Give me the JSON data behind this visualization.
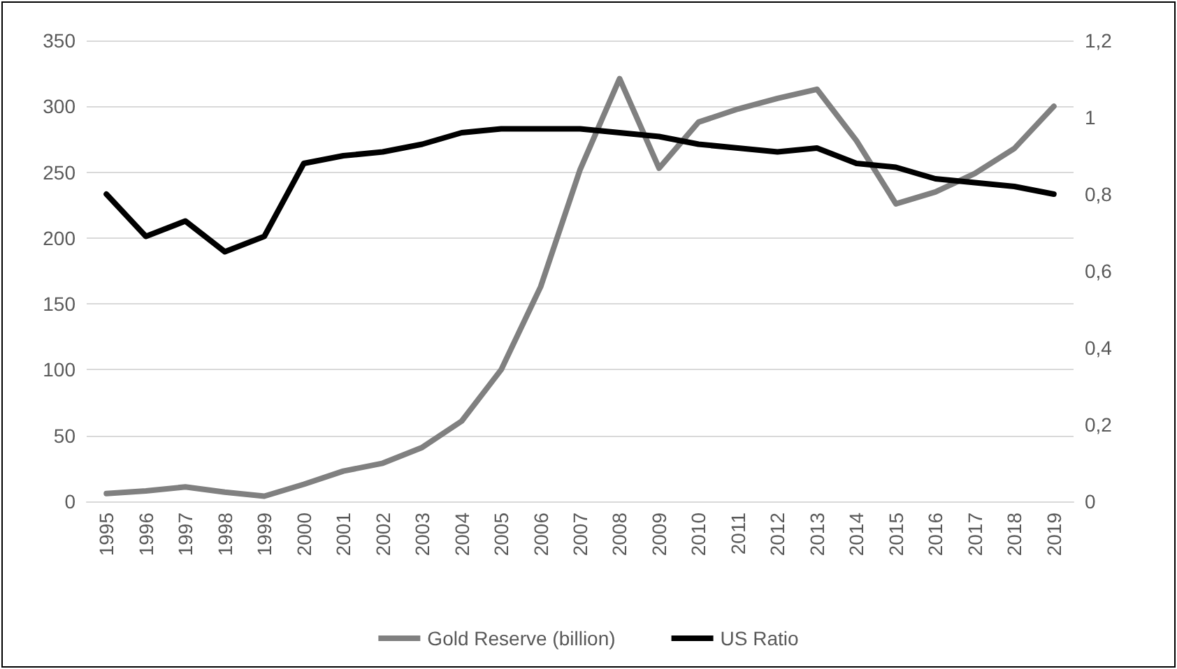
{
  "chart_data": {
    "type": "line",
    "categories": [
      "1995",
      "1996",
      "1997",
      "1998",
      "1999",
      "2000",
      "2001",
      "2002",
      "2003",
      "2004",
      "2005",
      "2006",
      "2007",
      "2008",
      "2009",
      "2010",
      "2011",
      "2012",
      "2013",
      "2014",
      "2015",
      "2016",
      "2017",
      "2018",
      "2019"
    ],
    "series": [
      {
        "name": "Gold Reserve (billion)",
        "color": "#808080",
        "values": [
          6,
          8,
          11,
          7,
          4,
          13,
          23,
          29,
          41,
          61,
          100,
          163,
          252,
          321,
          253,
          288,
          298,
          306,
          313,
          274,
          226,
          235,
          249,
          268,
          300
        ]
      },
      {
        "name": "US Ratio",
        "color": "#000000",
        "axis": "y2",
        "values": [
          0.8,
          0.69,
          0.73,
          0.65,
          0.69,
          0.88,
          0.9,
          0.91,
          0.93,
          0.96,
          0.97,
          0.97,
          0.97,
          0.96,
          0.95,
          0.93,
          0.92,
          0.91,
          0.92,
          0.88,
          0.87,
          0.84,
          0.83,
          0.82,
          0.8
        ]
      }
    ],
    "ylim": [
      0,
      350
    ],
    "yticks": [
      0,
      50,
      100,
      150,
      200,
      250,
      300,
      350
    ],
    "y2lim": [
      0,
      1.2
    ],
    "y2ticks": [
      0,
      {
        "value": 0.2,
        "label": "0,2"
      },
      {
        "value": 0.4,
        "label": "0,4"
      },
      {
        "value": 0.6,
        "label": "0,6"
      },
      {
        "value": 0.8,
        "label": "0,8"
      },
      1,
      {
        "value": 1.2,
        "label": "1,2"
      }
    ],
    "grid": "y",
    "legend": "bottom",
    "marker": "none",
    "line_style": "solid"
  }
}
